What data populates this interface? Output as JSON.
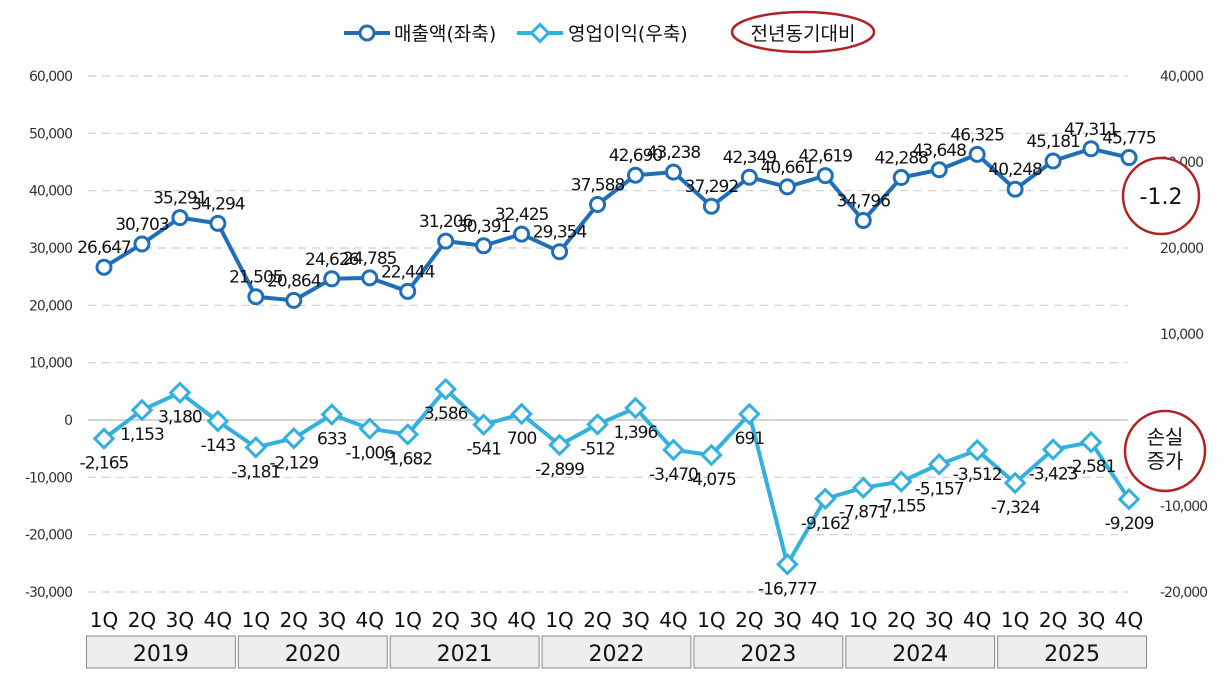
{
  "chart_data": {
    "type": "line",
    "legend": {
      "position": "top",
      "items": [
        {
          "label": "매출액(좌축)",
          "color": "#1f6fb8",
          "marker": "circle"
        },
        {
          "label": "영업이익(우축)",
          "color": "#33b0e0",
          "marker": "diamond"
        }
      ],
      "highlight": "전년동기대비"
    },
    "years": [
      "2019",
      "2020",
      "2021",
      "2022",
      "2023",
      "2024",
      "2025"
    ],
    "quarters": [
      "1Q",
      "2Q",
      "3Q",
      "4Q"
    ],
    "y_left": {
      "min": -30000,
      "max": 60000,
      "ticks": [
        "60,000",
        "50,000",
        "40,000",
        "30,000",
        "20,000",
        "10,000",
        "0",
        "-10,000",
        "-20,000",
        "-30,000"
      ]
    },
    "y_right": {
      "min": -20000,
      "max": 40000,
      "ticks": [
        "40,000",
        "30,000",
        "20,000",
        "10,000",
        "0",
        "-10,000",
        "-20,000"
      ]
    },
    "grid": true,
    "series": [
      {
        "name": "매출액(좌축)",
        "axis": "left",
        "color": "#1f6fb8",
        "values": [
          26647,
          30703,
          35291,
          34294,
          21505,
          20864,
          24626,
          24785,
          22444,
          31206,
          30391,
          32425,
          29354,
          37588,
          42690,
          43238,
          37292,
          42349,
          40661,
          42619,
          34796,
          42288,
          43648,
          46325,
          40248,
          45181,
          47311,
          45775
        ],
        "labels": [
          "26,647",
          "30,703",
          "35,291",
          "34,294",
          "21,505",
          "20,864",
          "24,626",
          "24,785",
          "22,444",
          "31,206",
          "30,391",
          "32,425",
          "29,354",
          "37,588",
          "42,690",
          "43,238",
          "37,292",
          "42,349",
          "40,661",
          "42,619",
          "34,796",
          "42,288",
          "43,648",
          "46,325",
          "40,248",
          "45,181",
          "47,311",
          "45,775"
        ]
      },
      {
        "name": "영업이익(우축)",
        "axis": "right",
        "color": "#33b0e0",
        "values": [
          -2165,
          1153,
          3180,
          -143,
          -3181,
          -2129,
          633,
          -1006,
          -1682,
          3586,
          -541,
          700,
          -2899,
          -512,
          1396,
          -3470,
          -4075,
          691,
          -16777,
          -9162,
          -7871,
          -7155,
          -5157,
          -3512,
          -7324,
          -3423,
          -2581,
          -9209
        ],
        "labels": [
          "-2,165",
          "1,153",
          "3,180",
          "-143",
          "-3,181",
          "-2,129",
          "633",
          "-1,006",
          "-1,682",
          "3,586",
          "-541",
          "700",
          "-2,899",
          "-512",
          "1,396",
          "-3,470",
          "-4,075",
          "691",
          "-16,777",
          "-9,162",
          "-7,871",
          "-7,155",
          "-5,157",
          "-3,512",
          "-7,324",
          "-3,423",
          "-2,581",
          "-9,209"
        ]
      }
    ],
    "annotations": [
      {
        "text": "-1.2",
        "series": "매출액(좌축)"
      },
      {
        "text": "손실\n증가",
        "series": "영업이익(우축)"
      }
    ]
  }
}
